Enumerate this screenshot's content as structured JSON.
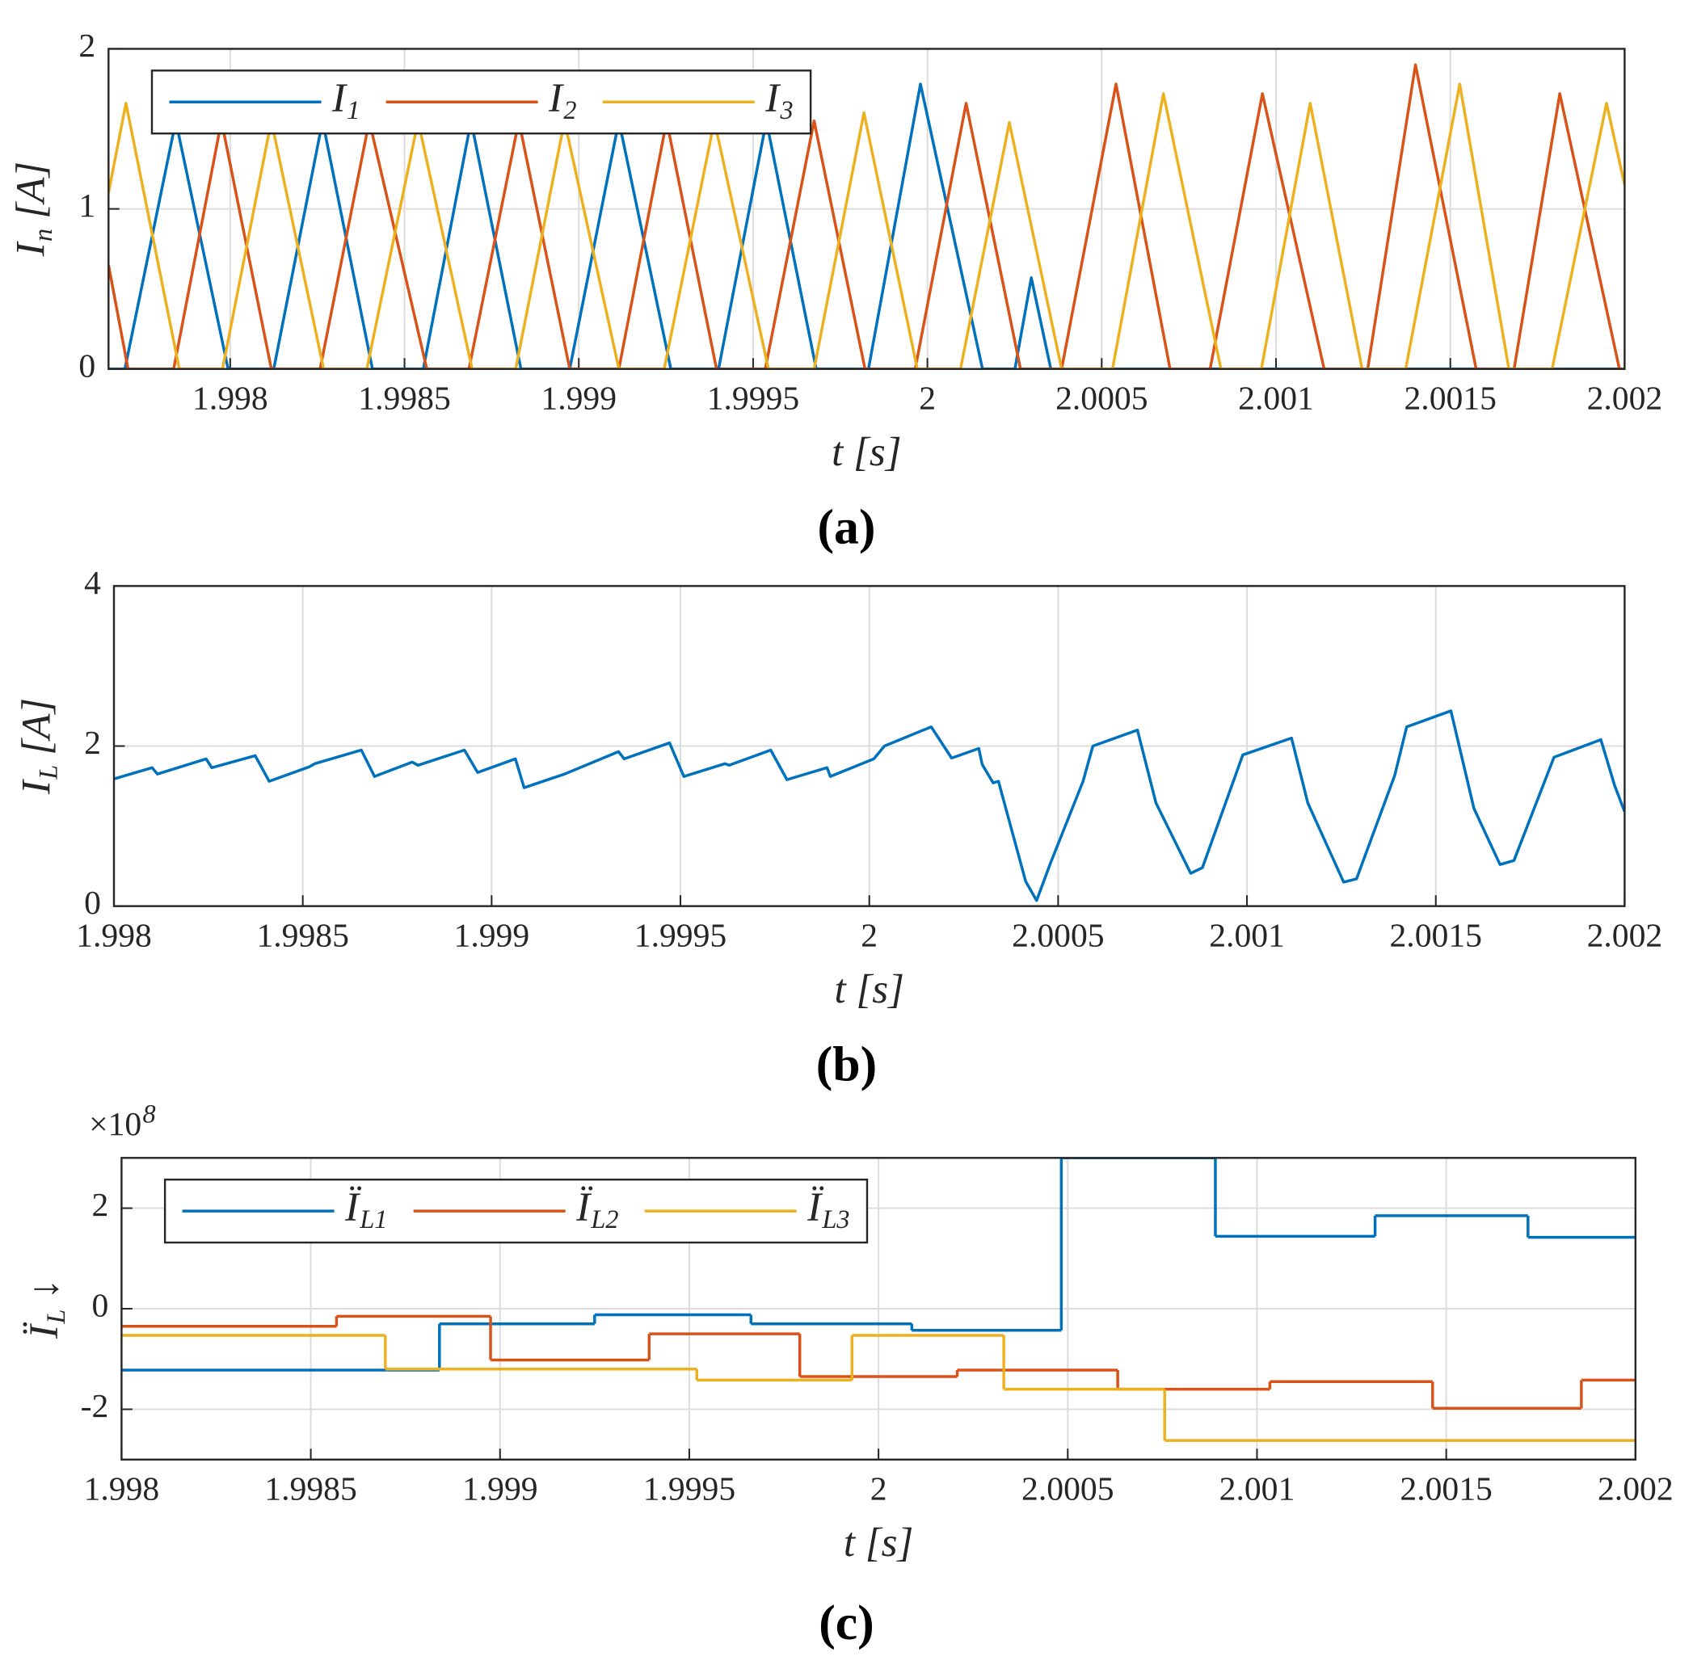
{
  "chart_data": [
    {
      "type": "line",
      "caption": "(a)",
      "xlabel": "t [s]",
      "ylabel": {
        "text": "I",
        "sub": "n",
        "unit": "[A]"
      },
      "xlim": [
        1.997651,
        2.002
      ],
      "xticks": [
        1.998,
        1.9985,
        1.999,
        1.9995,
        2,
        2.0005,
        2.001,
        2.0015,
        2.002
      ],
      "ylim": [
        0,
        2
      ],
      "yticks": [
        0,
        1,
        2
      ],
      "grid": true,
      "legend": "upper left",
      "series": [
        {
          "name": "I",
          "sub": "1",
          "color": "#0072BD",
          "x": [
            1.997651,
            1.997698,
            1.997844,
            1.997994,
            1.998125,
            1.998265,
            1.998408,
            1.998554,
            1.998691,
            1.998834,
            1.998974,
            1.999115,
            1.999264,
            1.999401,
            1.999538,
            1.999681,
            1.999831,
            1.99998,
            2.000158,
            2.000251,
            2.000298,
            2.000354,
            2.002
          ],
          "values": [
            0,
            0,
            1.55,
            0,
            0,
            1.55,
            0,
            0,
            1.55,
            0,
            0,
            1.55,
            0,
            0,
            1.55,
            0,
            0,
            1.78,
            0,
            0,
            0.57,
            0,
            0
          ]
        },
        {
          "name": "I",
          "sub": "2",
          "color": "#D95319",
          "x": [
            1.997651,
            1.997707,
            1.997838,
            1.997975,
            1.998118,
            1.998258,
            1.998399,
            1.998564,
            1.998685,
            1.998828,
            1.998974,
            1.999115,
            1.999252,
            1.999395,
            1.999535,
            1.999675,
            1.999821,
            1.999965,
            2.000111,
            2.000267,
            2.000385,
            2.000541,
            2.000696,
            2.000811,
            2.000961,
            2.001138,
            2.001263,
            2.0014,
            2.001574,
            2.001683,
            2.001814,
            2.001985,
            2.002
          ],
          "values": [
            0.65,
            0,
            0,
            1.55,
            0,
            0,
            1.55,
            0,
            0,
            1.55,
            0,
            0,
            1.55,
            0,
            0,
            1.55,
            0,
            0,
            1.66,
            0,
            0,
            1.78,
            0,
            0,
            1.72,
            0,
            0,
            1.9,
            0,
            0,
            1.72,
            0,
            0
          ]
        },
        {
          "name": "I",
          "sub": "3",
          "color": "#EDB120",
          "x": [
            1.997651,
            1.997701,
            1.997854,
            1.997978,
            1.998118,
            1.998268,
            1.998392,
            1.998539,
            1.998694,
            1.998819,
            1.998959,
            1.999115,
            1.999245,
            1.999389,
            1.999544,
            1.999675,
            1.999818,
            1.999971,
            2.000095,
            2.000235,
            2.000385,
            2.000531,
            2.000677,
            2.000842,
            2.000958,
            2.001098,
            2.001247,
            2.001372,
            2.001527,
            2.001668,
            2.001792,
            2.001948,
            2.002
          ],
          "values": [
            1.1,
            1.66,
            0,
            0,
            1.55,
            0,
            0,
            1.55,
            0,
            0,
            1.55,
            0,
            0,
            1.55,
            0,
            0,
            1.6,
            0,
            0,
            1.54,
            0,
            0,
            1.72,
            0,
            0,
            1.66,
            0,
            0,
            1.78,
            0,
            0,
            1.66,
            1.15
          ]
        }
      ]
    },
    {
      "type": "line",
      "caption": "(b)",
      "xlabel": "t [s]",
      "ylabel": {
        "text": "I",
        "sub": "L",
        "unit": "[A]"
      },
      "xlim": [
        1.998,
        2.002
      ],
      "xticks": [
        1.998,
        1.9985,
        1.999,
        1.9995,
        2,
        2.0005,
        2.001,
        2.0015,
        2.002
      ],
      "ylim": [
        0,
        4
      ],
      "yticks": [
        0,
        2,
        4
      ],
      "grid": true,
      "series": [
        {
          "color": "#0072BD",
          "x": [
            1.998,
            1.998101,
            1.998115,
            1.998244,
            1.998259,
            1.998374,
            1.998411,
            1.998517,
            1.998532,
            1.998655,
            1.99869,
            1.99879,
            1.998805,
            1.998928,
            1.998963,
            1.999063,
            1.999086,
            1.999193,
            1.999336,
            1.999351,
            1.999471,
            1.999509,
            1.999618,
            1.999629,
            1.999739,
            1.999782,
            1.999888,
            1.999897,
            2.000012,
            2.00004,
            2.000164,
            2.000218,
            2.00029,
            2.000299,
            2.000328,
            2.000342,
            2.000414,
            2.000443,
            2.00048,
            2.000566,
            2.000592,
            2.00071,
            2.000759,
            2.000851,
            2.000882,
            2.000989,
            2.001118,
            2.001161,
            2.001256,
            2.00129,
            2.001391,
            2.001423,
            2.00154,
            2.001601,
            2.00167,
            2.001707,
            2.001813,
            2.001937,
            2.001974,
            2.002
          ],
          "values": [
            1.59,
            1.73,
            1.65,
            1.84,
            1.73,
            1.88,
            1.56,
            1.74,
            1.78,
            1.95,
            1.62,
            1.8,
            1.76,
            1.95,
            1.67,
            1.84,
            1.48,
            1.65,
            1.93,
            1.84,
            2.04,
            1.62,
            1.78,
            1.76,
            1.95,
            1.58,
            1.73,
            1.62,
            1.84,
            2.0,
            2.24,
            1.85,
            1.97,
            1.77,
            1.54,
            1.56,
            0.31,
            0.07,
            0.54,
            1.56,
            2.0,
            2.2,
            1.29,
            0.41,
            0.48,
            1.89,
            2.1,
            1.29,
            0.3,
            0.34,
            1.63,
            2.24,
            2.44,
            1.22,
            0.52,
            0.57,
            1.86,
            2.08,
            1.5,
            1.18
          ]
        }
      ]
    },
    {
      "type": "step",
      "caption": "(c)",
      "xlabel": "t [s]",
      "ylabel": {
        "text": "Ï",
        "sub": "L",
        "unit": "↓"
      },
      "y_multiplier": {
        "text": "×10",
        "sup": "8"
      },
      "xlim": [
        1.998,
        2.002
      ],
      "xticks": [
        1.998,
        1.9985,
        1.999,
        1.9995,
        2,
        2.0005,
        2.001,
        2.0015,
        2.002
      ],
      "ylim": [
        -3,
        3
      ],
      "yticks": [
        -2,
        0,
        2
      ],
      "grid": true,
      "legend": "upper left",
      "series": [
        {
          "name": "Ï",
          "sub": "L1",
          "color": "#0072BD",
          "x": [
            1.998,
            1.99884,
            1.99925,
            1.999663,
            2.000088,
            2.000483,
            2.00089,
            2.001312,
            2.001716
          ],
          "values": [
            -1.22,
            -0.3,
            -0.12,
            -0.3,
            -0.43,
            3,
            1.44,
            1.85,
            1.42
          ]
        },
        {
          "name": "Ï",
          "sub": "L2",
          "color": "#D95319",
          "x": [
            1.998,
            1.998568,
            1.998975,
            1.999394,
            1.999792,
            2.000208,
            2.000632,
            2.001034,
            2.001464,
            2.001857
          ],
          "values": [
            -0.35,
            -0.15,
            -1.02,
            -0.5,
            -1.35,
            -1.22,
            -1.6,
            -1.45,
            -1.98,
            -1.42
          ]
        },
        {
          "name": "Ï",
          "sub": "L3",
          "color": "#EDB120",
          "x": [
            1.998,
            1.998697,
            1.99952,
            1.99993,
            2.000331,
            2.000756
          ],
          "values": [
            -0.53,
            -1.2,
            -1.42,
            -0.53,
            -1.6,
            -2.62
          ]
        }
      ]
    }
  ]
}
